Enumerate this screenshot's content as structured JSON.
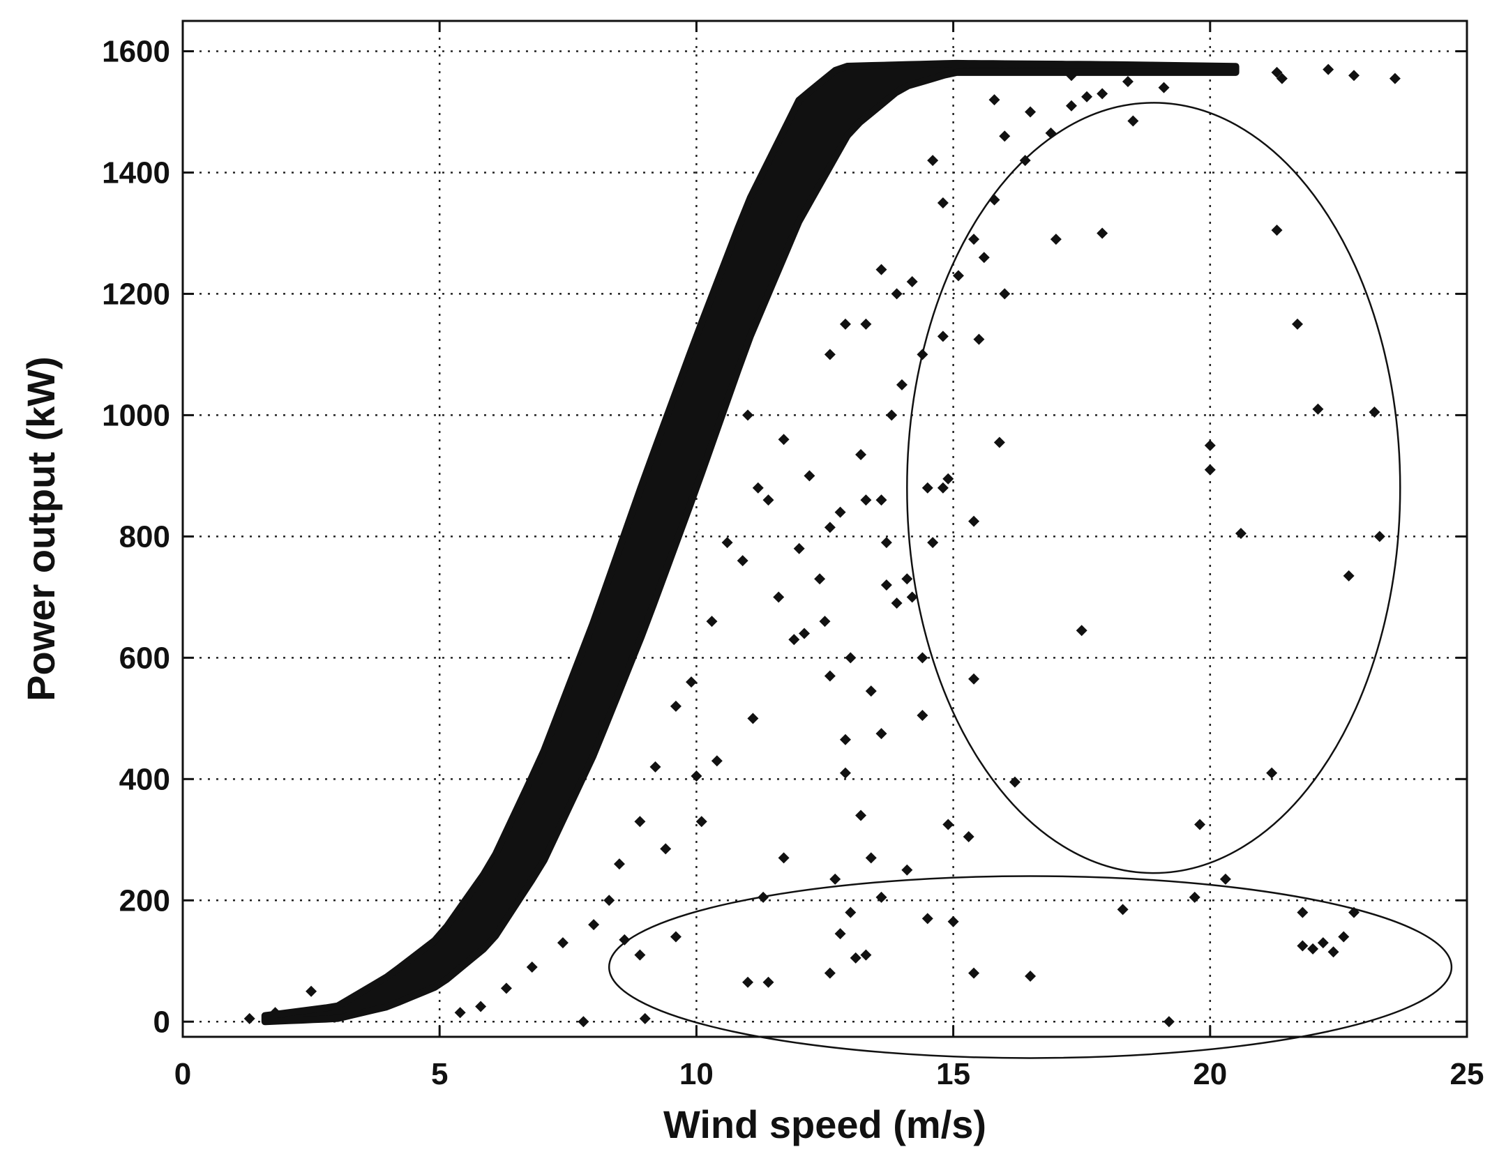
{
  "chart_data": {
    "type": "scatter",
    "title": "",
    "xlabel": "Wind speed (m/s)",
    "ylabel": "Power output (kW)",
    "xlim": [
      0,
      25
    ],
    "ylim": [
      -25,
      1650
    ],
    "xticks": [
      0,
      5,
      10,
      15,
      20,
      25
    ],
    "yticks": [
      0,
      200,
      400,
      600,
      800,
      1000,
      1200,
      1400,
      1600
    ],
    "xtick_labels": [
      "0",
      "5",
      "10",
      "15",
      "20",
      "25"
    ],
    "ytick_labels": [
      "0",
      "200",
      "400",
      "600",
      "800",
      "1000",
      "1200",
      "1400",
      "1600"
    ],
    "grid": true,
    "grid_style": "dotted",
    "marker": "diamond",
    "marker_color": "#111111",
    "main_band": {
      "description_free": true,
      "lower_curve": [
        [
          1.6,
          0
        ],
        [
          3,
          5
        ],
        [
          4,
          25
        ],
        [
          5,
          60
        ],
        [
          6,
          130
        ],
        [
          7,
          260
        ],
        [
          8,
          440
        ],
        [
          9,
          650
        ],
        [
          10,
          880
        ],
        [
          11,
          1120
        ],
        [
          12,
          1320
        ],
        [
          13,
          1470
        ],
        [
          14,
          1540
        ],
        [
          15,
          1565
        ],
        [
          18,
          1565
        ],
        [
          20,
          1565
        ]
      ],
      "upper_curve": [
        [
          1.6,
          10
        ],
        [
          3,
          25
        ],
        [
          4,
          75
        ],
        [
          5,
          140
        ],
        [
          6,
          260
        ],
        [
          7,
          440
        ],
        [
          8,
          660
        ],
        [
          9,
          900
        ],
        [
          10,
          1130
        ],
        [
          11,
          1350
        ],
        [
          12,
          1520
        ],
        [
          12.8,
          1575
        ],
        [
          15,
          1580
        ],
        [
          18,
          1578
        ],
        [
          20.5,
          1575
        ]
      ]
    },
    "outliers": [
      [
        17.0,
        1290
      ],
      [
        17.9,
        1300
      ],
      [
        21.3,
        1305
      ],
      [
        21.7,
        1150
      ],
      [
        16.0,
        1200
      ],
      [
        15.5,
        1125
      ],
      [
        18.5,
        1485
      ],
      [
        22.1,
        1010
      ],
      [
        23.2,
        1005
      ],
      [
        15.9,
        955
      ],
      [
        20.0,
        950
      ],
      [
        20.0,
        910
      ],
      [
        14.8,
        880
      ],
      [
        14.9,
        895
      ],
      [
        20.6,
        805
      ],
      [
        23.3,
        800
      ],
      [
        15.4,
        825
      ],
      [
        22.7,
        735
      ],
      [
        17.5,
        645
      ],
      [
        15.4,
        565
      ],
      [
        14.4,
        600
      ],
      [
        16.2,
        395
      ],
      [
        21.2,
        410
      ],
      [
        19.8,
        325
      ],
      [
        20.3,
        235
      ],
      [
        19.7,
        205
      ],
      [
        18.3,
        185
      ],
      [
        21.8,
        180
      ],
      [
        22.8,
        180
      ],
      [
        21.8,
        125
      ],
      [
        22.0,
        120
      ],
      [
        22.2,
        130
      ],
      [
        22.4,
        115
      ],
      [
        22.6,
        140
      ],
      [
        15.0,
        165
      ],
      [
        15.4,
        80
      ],
      [
        16.5,
        75
      ],
      [
        19.2,
        0
      ],
      [
        13.1,
        105
      ],
      [
        13.3,
        110
      ],
      [
        12.6,
        80
      ],
      [
        12.8,
        145
      ],
      [
        11.0,
        65
      ],
      [
        11.4,
        65
      ],
      [
        11.3,
        205
      ],
      [
        11.7,
        270
      ],
      [
        13.6,
        205
      ],
      [
        14.1,
        250
      ],
      [
        13.4,
        270
      ],
      [
        9.0,
        5
      ],
      [
        7.8,
        0
      ],
      [
        9.6,
        140
      ],
      [
        8.6,
        135
      ],
      [
        8.9,
        110
      ],
      [
        14.5,
        170
      ],
      [
        13.0,
        180
      ],
      [
        12.7,
        235
      ],
      [
        13.2,
        340
      ],
      [
        12.9,
        410
      ],
      [
        11.1,
        500
      ],
      [
        10.0,
        405
      ],
      [
        9.9,
        560
      ],
      [
        12.9,
        465
      ],
      [
        13.4,
        545
      ],
      [
        13.6,
        475
      ],
      [
        13.0,
        600
      ],
      [
        12.6,
        570
      ],
      [
        14.9,
        325
      ],
      [
        15.3,
        305
      ],
      [
        11.9,
        630
      ],
      [
        12.5,
        660
      ],
      [
        12.4,
        730
      ],
      [
        14.4,
        505
      ],
      [
        14.1,
        730
      ],
      [
        13.7,
        720
      ],
      [
        13.9,
        690
      ],
      [
        12.0,
        780
      ],
      [
        12.6,
        815
      ],
      [
        11.4,
        860
      ],
      [
        12.2,
        900
      ],
      [
        12.8,
        840
      ],
      [
        13.2,
        935
      ],
      [
        13.3,
        860
      ],
      [
        13.6,
        860
      ],
      [
        13.7,
        790
      ],
      [
        14.2,
        700
      ],
      [
        14.5,
        880
      ],
      [
        14.6,
        790
      ],
      [
        13.8,
        1000
      ],
      [
        14.0,
        1050
      ],
      [
        14.4,
        1100
      ],
      [
        14.8,
        1130
      ],
      [
        15.1,
        1230
      ],
      [
        15.4,
        1290
      ],
      [
        15.6,
        1260
      ],
      [
        15.8,
        1355
      ],
      [
        16.4,
        1420
      ],
      [
        16.9,
        1465
      ],
      [
        17.3,
        1510
      ],
      [
        17.9,
        1530
      ],
      [
        16.0,
        1460
      ],
      [
        15.8,
        1520
      ],
      [
        14.8,
        1350
      ],
      [
        14.6,
        1420
      ],
      [
        14.2,
        1220
      ],
      [
        13.9,
        1200
      ],
      [
        13.3,
        1150
      ],
      [
        13.6,
        1240
      ],
      [
        12.6,
        1100
      ],
      [
        12.9,
        1150
      ],
      [
        11.7,
        960
      ],
      [
        11.2,
        880
      ],
      [
        10.6,
        790
      ],
      [
        10.3,
        660
      ],
      [
        9.6,
        520
      ],
      [
        9.2,
        420
      ],
      [
        8.9,
        330
      ],
      [
        8.5,
        260
      ],
      [
        8.3,
        200
      ],
      [
        8.0,
        160
      ],
      [
        7.4,
        130
      ],
      [
        6.8,
        90
      ],
      [
        6.3,
        55
      ],
      [
        5.8,
        25
      ],
      [
        5.4,
        15
      ],
      [
        2.5,
        50
      ],
      [
        1.3,
        5
      ],
      [
        1.8,
        15
      ],
      [
        10.9,
        760
      ],
      [
        11.6,
        700
      ],
      [
        12.1,
        640
      ],
      [
        11.0,
        1000
      ],
      [
        10.4,
        430
      ],
      [
        10.1,
        330
      ],
      [
        9.4,
        285
      ],
      [
        17.3,
        1560
      ],
      [
        18.4,
        1550
      ],
      [
        19.1,
        1540
      ],
      [
        21.3,
        1565
      ],
      [
        21.4,
        1555
      ],
      [
        22.3,
        1570
      ],
      [
        22.8,
        1560
      ],
      [
        23.6,
        1555
      ],
      [
        16.5,
        1500
      ],
      [
        17.6,
        1525
      ]
    ],
    "annotations": [
      {
        "shape": "ellipse",
        "center": [
          18.9,
          880
        ],
        "radii": [
          4.8,
          635
        ]
      },
      {
        "shape": "ellipse",
        "center": [
          16.5,
          90
        ],
        "radii": [
          8.2,
          150
        ]
      }
    ]
  }
}
